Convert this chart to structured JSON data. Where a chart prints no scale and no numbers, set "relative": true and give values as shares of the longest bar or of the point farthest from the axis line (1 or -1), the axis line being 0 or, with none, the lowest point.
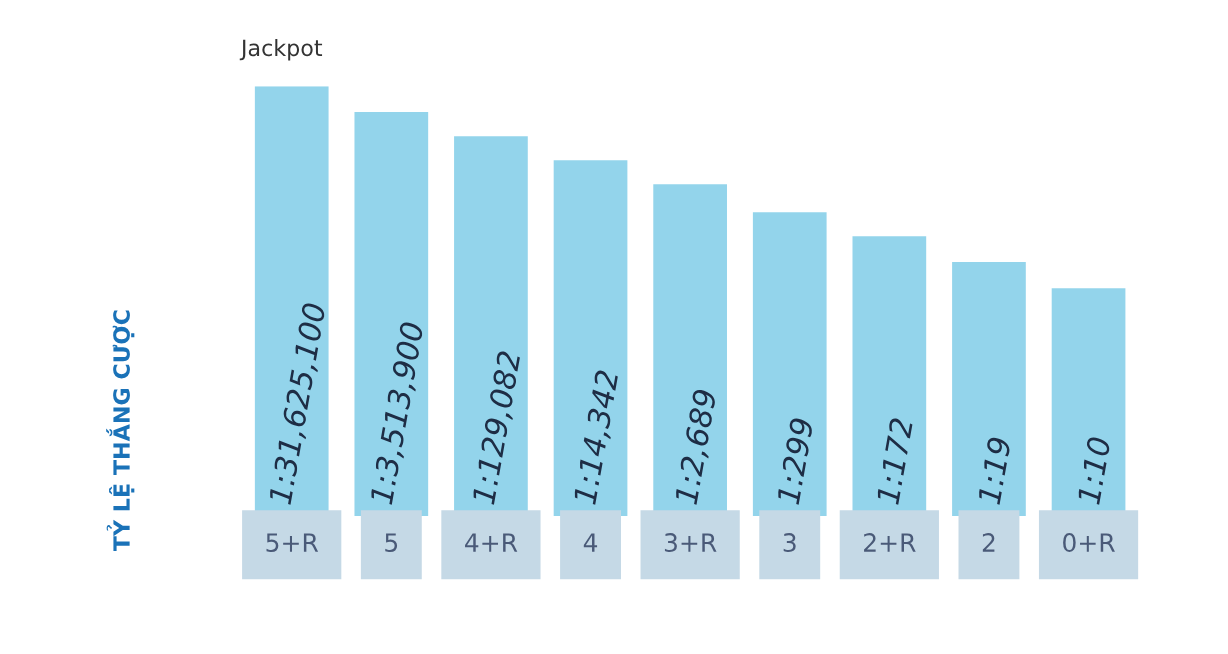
{
  "chart_data": {
    "type": "bar",
    "relative": true,
    "ylabel": "TỶ LỆ THẮNG CƯỢC",
    "categories": [
      "5+R",
      "5",
      "4+R",
      "4",
      "3+R",
      "3",
      "2+R",
      "2",
      "0+R"
    ],
    "values": [
      1,
      0.94,
      0.884,
      0.828,
      0.772,
      0.707,
      0.651,
      0.591,
      0.53
    ],
    "color": "#93d4eb",
    "annotations": [
      "Jackpot",
      "1:31,625,100",
      "1:3,513,900",
      "1:129,082",
      "1:14,342",
      "1:2,689",
      "1:299",
      "1:172",
      "1:19",
      "1:10"
    ],
    "grid": false,
    "legend": false
  }
}
